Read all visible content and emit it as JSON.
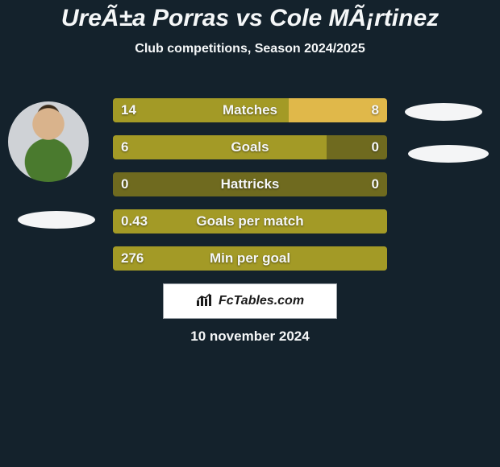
{
  "colors": {
    "background": "#14222c",
    "text": "#f5f7f8",
    "shadow": "#f4f5f6",
    "bar_track": "#6f6a1f",
    "bar_left_fill": "#a39a26",
    "bar_right_fill": "#e0b84a",
    "logo_bg": "#ffffff",
    "logo_border": "#9aa0a6",
    "logo_text": "#1a1a1a"
  },
  "title": {
    "text": "UreÃ±a Porras vs Cole MÃ¡rtinez",
    "fontsize": 30
  },
  "subtitle": {
    "text": "Club competitions, Season 2024/2025",
    "fontsize": 16
  },
  "stats": {
    "label_fontsize": 17,
    "value_fontsize": 17,
    "rows": [
      {
        "label": "Matches",
        "left": "14",
        "right": "8",
        "left_pct": 64,
        "right_pct": 36
      },
      {
        "label": "Goals",
        "left": "6",
        "right": "0",
        "left_pct": 78,
        "right_pct": 0
      },
      {
        "label": "Hattricks",
        "left": "0",
        "right": "0",
        "left_pct": 0,
        "right_pct": 0
      },
      {
        "label": "Goals per match",
        "left": "0.43",
        "right": "",
        "left_pct": 100,
        "right_pct": 0
      },
      {
        "label": "Min per goal",
        "left": "276",
        "right": "",
        "left_pct": 100,
        "right_pct": 0
      }
    ]
  },
  "logo": {
    "text": "FcTables.com",
    "fontsize": 16
  },
  "date": {
    "text": "10 november 2024",
    "fontsize": 17
  }
}
